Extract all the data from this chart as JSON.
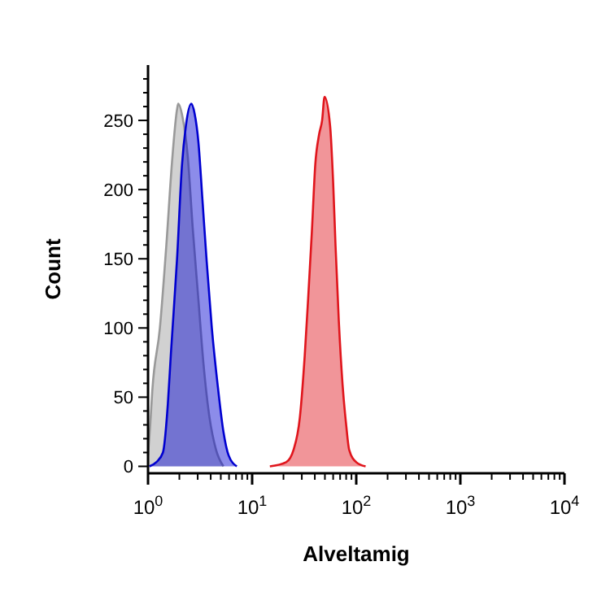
{
  "chart_data": {
    "type": "area",
    "xlabel": "Alveltamig",
    "ylabel": "Count",
    "log": "x",
    "xlim": [
      1,
      10000
    ],
    "ylim": [
      -5,
      290
    ],
    "xticks": [
      {
        "value": 1,
        "label": "10$^{0}$"
      },
      {
        "value": 2,
        "label": null
      },
      {
        "value": 3,
        "label": null
      },
      {
        "value": 4,
        "label": null
      },
      {
        "value": 5,
        "label": null
      },
      {
        "value": 6,
        "label": null
      },
      {
        "value": 7,
        "label": null
      },
      {
        "value": 8,
        "label": null
      },
      {
        "value": 9,
        "label": null
      },
      {
        "value": 10,
        "label": "10$^{1}$"
      },
      {
        "value": 20,
        "label": null
      },
      {
        "value": 30,
        "label": null
      },
      {
        "value": 40,
        "label": null
      },
      {
        "value": 50,
        "label": null
      },
      {
        "value": 60,
        "label": null
      },
      {
        "value": 70,
        "label": null
      },
      {
        "value": 80,
        "label": null
      },
      {
        "value": 90,
        "label": null
      },
      {
        "value": 100,
        "label": "10$^{2}$"
      },
      {
        "value": 200,
        "label": null
      },
      {
        "value": 300,
        "label": null
      },
      {
        "value": 400,
        "label": null
      },
      {
        "value": 500,
        "label": null
      },
      {
        "value": 600,
        "label": null
      },
      {
        "value": 700,
        "label": null
      },
      {
        "value": 800,
        "label": null
      },
      {
        "value": 900,
        "label": null
      },
      {
        "value": 1000,
        "label": "10$^{3}$"
      },
      {
        "value": 2000,
        "label": null
      },
      {
        "value": 3000,
        "label": null
      },
      {
        "value": 4000,
        "label": null
      },
      {
        "value": 5000,
        "label": null
      },
      {
        "value": 6000,
        "label": null
      },
      {
        "value": 7000,
        "label": null
      },
      {
        "value": 8000,
        "label": null
      },
      {
        "value": 9000,
        "label": null
      },
      {
        "value": 10000,
        "label": "10$^{4}$"
      }
    ],
    "yticks": [
      0,
      {
        "value": 10,
        "label": null
      },
      {
        "value": 20,
        "label": null
      },
      {
        "value": 30,
        "label": null
      },
      {
        "value": 40,
        "label": null
      },
      50,
      {
        "value": 60,
        "label": null
      },
      {
        "value": 70,
        "label": null
      },
      {
        "value": 80,
        "label": null
      },
      {
        "value": 90,
        "label": null
      },
      100,
      {
        "value": 110,
        "label": null
      },
      {
        "value": 120,
        "label": null
      },
      {
        "value": 130,
        "label": null
      },
      {
        "value": 140,
        "label": null
      },
      150,
      {
        "value": 160,
        "label": null
      },
      {
        "value": 170,
        "label": null
      },
      {
        "value": 180,
        "label": null
      },
      {
        "value": 190,
        "label": null
      },
      200,
      {
        "value": 210,
        "label": null
      },
      {
        "value": 220,
        "label": null
      },
      {
        "value": 230,
        "label": null
      },
      {
        "value": 240,
        "label": null
      },
      250,
      {
        "value": 260,
        "label": null
      },
      {
        "value": 270,
        "label": null
      },
      {
        "value": 280,
        "label": null
      }
    ],
    "grid": false,
    "series": [
      {
        "color": "#999999",
        "x": [
          1.0,
          1.05,
          1.1,
          1.3,
          1.5,
          1.7,
          1.9,
          1.95,
          2.15,
          2.4,
          2.7,
          3.05,
          3.4,
          3.9,
          4.5,
          5.3
        ],
        "values": [
          8,
          30,
          55,
          100,
          160,
          220,
          258,
          262,
          252,
          225,
          170,
          120,
          75,
          35,
          12,
          0
        ]
      },
      {
        "color": "#0000d0",
        "x": [
          1.03,
          1.2,
          1.39,
          1.55,
          1.66,
          1.9,
          2.12,
          2.3,
          2.6,
          2.8,
          3.05,
          3.35,
          3.66,
          4.1,
          4.66,
          5.3,
          5.94,
          7.13
        ],
        "values": [
          0,
          3,
          10,
          45,
          82,
          150,
          218,
          245,
          262,
          255,
          234,
          190,
          148,
          100,
          59,
          25,
          8,
          0
        ]
      },
      {
        "color": "#e0151c",
        "x": [
          14.8,
          21.2,
          25,
          28.7,
          32,
          34.5,
          37.5,
          40.4,
          44,
          47,
          49.6,
          56.1,
          60,
          63.2,
          68,
          73.9,
          80,
          85.5,
          100,
          123
        ],
        "values": [
          0,
          3,
          12,
          35,
          80,
          121,
          170,
          218,
          240,
          250,
          267,
          246,
          205,
          160,
          105,
          59,
          30,
          12,
          3,
          0
        ]
      }
    ]
  }
}
